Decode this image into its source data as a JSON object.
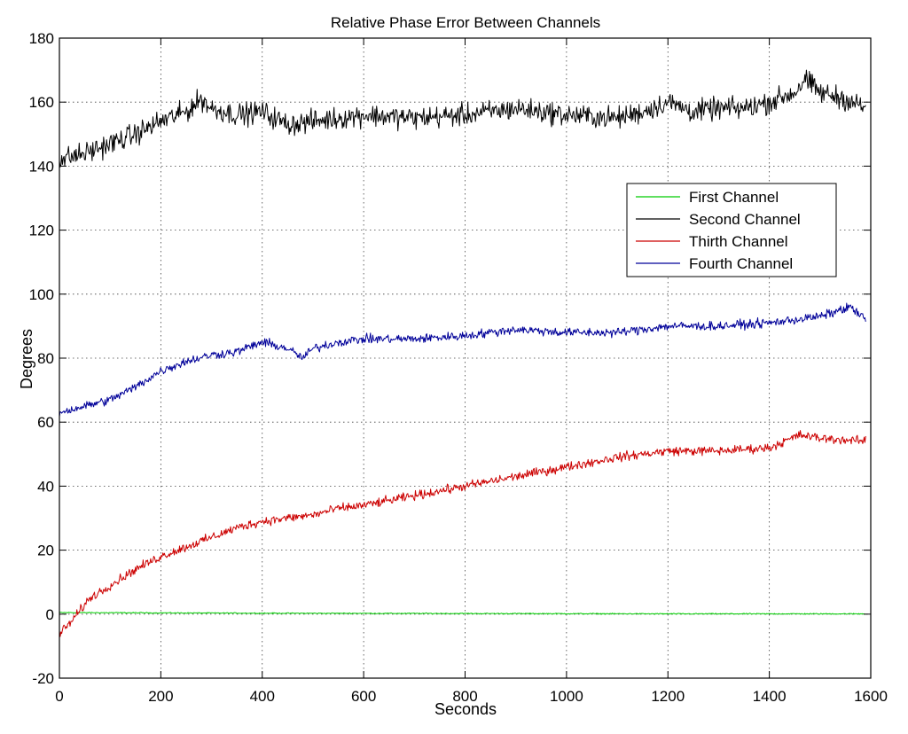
{
  "chart_data": {
    "type": "line",
    "title": "Relative Phase Error Between Channels",
    "xlabel": "Seconds",
    "ylabel": "Degrees",
    "xlim": [
      0,
      1600
    ],
    "ylim": [
      -20,
      180
    ],
    "xticks": [
      0,
      200,
      400,
      600,
      800,
      1000,
      1200,
      1400,
      1600
    ],
    "yticks": [
      -20,
      0,
      20,
      40,
      60,
      80,
      100,
      120,
      140,
      160,
      180
    ],
    "grid": true,
    "legend_position": "upper-right, inside plot",
    "series": [
      {
        "name": "First Channel",
        "color": "#00cc00",
        "noise": 0.15,
        "x": [
          0,
          400,
          800,
          1200,
          1590
        ],
        "y": [
          0.5,
          0.3,
          0.2,
          0.1,
          0.1
        ]
      },
      {
        "name": "Second Channel",
        "color": "#000000",
        "noise": 3.2,
        "x": [
          0,
          50,
          100,
          150,
          200,
          250,
          280,
          300,
          350,
          400,
          450,
          500,
          550,
          600,
          700,
          800,
          900,
          1000,
          1100,
          1150,
          1200,
          1250,
          1300,
          1350,
          1400,
          1450,
          1470,
          1500,
          1550,
          1590
        ],
        "y": [
          142,
          144,
          147,
          150,
          154,
          157,
          161,
          158,
          156,
          157,
          153,
          154,
          155,
          156,
          155,
          156,
          158,
          156,
          155,
          157,
          160,
          157,
          158,
          158,
          160,
          163,
          167,
          163,
          161,
          158
        ]
      },
      {
        "name": "Thirth Channel",
        "color": "#cc0000",
        "noise": 1.3,
        "x": [
          0,
          20,
          40,
          60,
          100,
          150,
          200,
          250,
          300,
          350,
          400,
          450,
          500,
          550,
          600,
          700,
          800,
          900,
          1000,
          1100,
          1200,
          1300,
          1400,
          1460,
          1500,
          1590
        ],
        "y": [
          -6,
          -3,
          1,
          5,
          9,
          14,
          18,
          21,
          24,
          27,
          29,
          30,
          31,
          33,
          34,
          37,
          40,
          43,
          46,
          49,
          51,
          51,
          52,
          56,
          55,
          54
        ]
      },
      {
        "name": "Fourth Channel",
        "color": "#000099",
        "noise": 1.3,
        "x": [
          0,
          50,
          100,
          150,
          200,
          250,
          300,
          350,
          400,
          450,
          480,
          500,
          550,
          600,
          700,
          800,
          900,
          1000,
          1100,
          1200,
          1300,
          1400,
          1500,
          1560,
          1590
        ],
        "y": [
          63,
          65,
          67,
          71,
          76,
          79,
          81,
          82,
          85,
          83,
          80,
          83,
          85,
          86,
          86,
          87,
          89,
          88,
          88,
          90,
          90,
          91,
          93,
          96,
          92
        ]
      }
    ]
  }
}
